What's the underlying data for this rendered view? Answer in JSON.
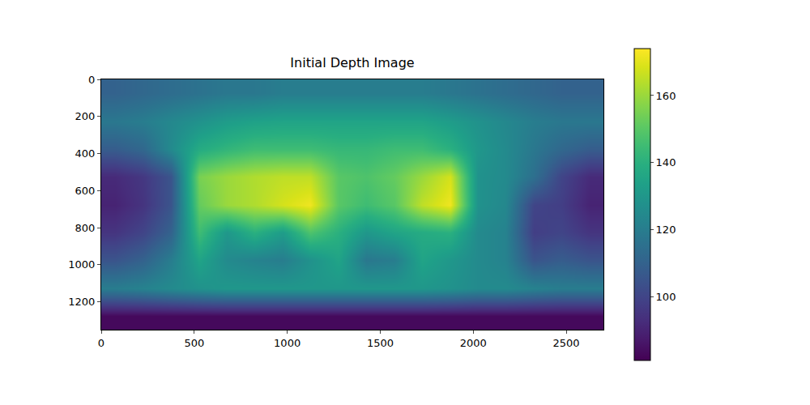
{
  "chart_data": {
    "type": "heatmap",
    "title": "Initial Depth Image",
    "color": "Viridis",
    "x": [
      75,
      225,
      375,
      525,
      675,
      825,
      975,
      1125,
      1275,
      1425,
      1575,
      1725,
      1875,
      2025,
      2175,
      2325,
      2475,
      2625
    ],
    "y": [
      75,
      225,
      375,
      525,
      675,
      825,
      975,
      1125,
      1275
    ],
    "values": [
      [
        110,
        112,
        114,
        116,
        118,
        118,
        120,
        120,
        120,
        120,
        120,
        120,
        118,
        116,
        114,
        112,
        110,
        110
      ],
      [
        118,
        120,
        124,
        128,
        132,
        134,
        135,
        135,
        135,
        135,
        135,
        135,
        132,
        128,
        124,
        120,
        118,
        118
      ],
      [
        108,
        112,
        125,
        138,
        142,
        145,
        145,
        145,
        143,
        143,
        145,
        145,
        140,
        130,
        125,
        118,
        112,
        108
      ],
      [
        92,
        96,
        105,
        155,
        160,
        163,
        165,
        165,
        150,
        148,
        152,
        160,
        168,
        128,
        125,
        115,
        100,
        92
      ],
      [
        90,
        95,
        105,
        152,
        160,
        163,
        168,
        172,
        150,
        145,
        150,
        165,
        172,
        128,
        124,
        100,
        98,
        90
      ],
      [
        95,
        100,
        110,
        145,
        130,
        140,
        132,
        148,
        140,
        130,
        135,
        138,
        140,
        125,
        122,
        98,
        100,
        95
      ],
      [
        105,
        110,
        120,
        135,
        125,
        122,
        120,
        128,
        135,
        118,
        120,
        135,
        130,
        125,
        122,
        105,
        108,
        105
      ],
      [
        120,
        122,
        125,
        128,
        130,
        130,
        130,
        130,
        130,
        130,
        130,
        130,
        128,
        125,
        125,
        122,
        120,
        120
      ],
      [
        83,
        83,
        83,
        83,
        83,
        83,
        83,
        83,
        83,
        83,
        83,
        83,
        83,
        83,
        83,
        83,
        83,
        83
      ]
    ],
    "xlim": [
      0,
      2700
    ],
    "ylim": [
      1350,
      0
    ],
    "xticks": [
      0,
      500,
      1000,
      1500,
      2000,
      2500
    ],
    "yticks": [
      0,
      200,
      400,
      600,
      800,
      1000,
      1200
    ],
    "colorbar_range": [
      81,
      174
    ],
    "colorbar_ticks": [
      100,
      120,
      140,
      160
    ]
  }
}
